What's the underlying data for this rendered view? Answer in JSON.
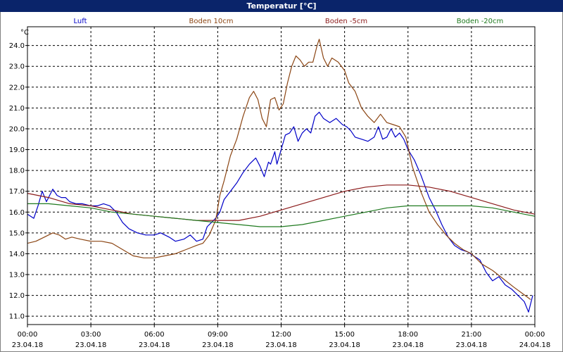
{
  "window": {
    "title": "Temperatur [°C]"
  },
  "chart_data": {
    "type": "line",
    "ylabel": "°C",
    "ylim": [
      10.6,
      24.9
    ],
    "xlim": [
      0,
      24
    ],
    "grid": true,
    "legend_placement": "top",
    "y_ticks": [
      "11.0",
      "12.0",
      "13.0",
      "14.0",
      "15.0",
      "16.0",
      "17.0",
      "18.0",
      "19.0",
      "20.0",
      "21.0",
      "22.0",
      "23.0",
      "24.0"
    ],
    "x_ticks": [
      {
        "t": 0,
        "time": "00:00",
        "date": "23.04.18"
      },
      {
        "t": 3,
        "time": "03:00",
        "date": "23.04.18"
      },
      {
        "t": 6,
        "time": "06:00",
        "date": "23.04.18"
      },
      {
        "t": 9,
        "time": "09:00",
        "date": "23.04.18"
      },
      {
        "t": 12,
        "time": "12:00",
        "date": "23.04.18"
      },
      {
        "t": 15,
        "time": "15:00",
        "date": "23.04.18"
      },
      {
        "t": 18,
        "time": "18:00",
        "date": "23.04.18"
      },
      {
        "t": 21,
        "time": "21:00",
        "date": "23.04.18"
      },
      {
        "t": 24,
        "time": "00:00",
        "date": "24.04.18"
      }
    ],
    "series": [
      {
        "name": "Luft",
        "color": "#0000c8",
        "x": [
          0,
          0.3,
          0.5,
          0.7,
          0.9,
          1.1,
          1.2,
          1.4,
          1.6,
          1.8,
          2.0,
          2.3,
          2.6,
          3.0,
          3.3,
          3.6,
          3.9,
          4.2,
          4.5,
          4.8,
          5.2,
          5.6,
          6.0,
          6.3,
          6.7,
          7.0,
          7.4,
          7.7,
          8.0,
          8.3,
          8.5,
          8.7,
          8.9,
          9.1,
          9.3,
          9.6,
          9.9,
          10.2,
          10.5,
          10.8,
          11.0,
          11.2,
          11.4,
          11.5,
          11.7,
          11.8,
          12.0,
          12.2,
          12.4,
          12.6,
          12.8,
          13.0,
          13.2,
          13.4,
          13.6,
          13.8,
          14.0,
          14.3,
          14.6,
          14.9,
          15.1,
          15.3,
          15.5,
          15.8,
          16.1,
          16.4,
          16.6,
          16.8,
          17.0,
          17.2,
          17.4,
          17.6,
          17.8,
          18.0,
          18.3,
          18.6,
          19.0,
          19.3,
          19.6,
          19.9,
          20.2,
          20.5,
          20.8,
          21.1,
          21.4,
          21.7,
          22.0,
          22.3,
          22.6,
          22.9,
          23.2,
          23.5,
          23.7,
          23.9
        ],
        "y": [
          15.9,
          15.7,
          16.3,
          17.0,
          16.5,
          16.9,
          17.1,
          16.8,
          16.7,
          16.7,
          16.5,
          16.4,
          16.4,
          16.3,
          16.3,
          16.4,
          16.3,
          16.0,
          15.5,
          15.2,
          15.0,
          14.9,
          14.9,
          15.0,
          14.8,
          14.6,
          14.7,
          14.9,
          14.6,
          14.7,
          15.3,
          15.5,
          15.7,
          16.0,
          16.6,
          17.0,
          17.4,
          17.9,
          18.3,
          18.6,
          18.2,
          17.7,
          18.4,
          18.3,
          18.9,
          18.3,
          19.0,
          19.7,
          19.8,
          20.1,
          19.4,
          19.8,
          20.0,
          19.8,
          20.6,
          20.8,
          20.5,
          20.3,
          20.5,
          20.2,
          20.1,
          19.9,
          19.6,
          19.5,
          19.4,
          19.6,
          20.1,
          19.5,
          19.6,
          20.0,
          19.6,
          19.8,
          19.5,
          19.0,
          18.5,
          17.8,
          16.7,
          16.1,
          15.4,
          14.8,
          14.4,
          14.2,
          14.1,
          13.9,
          13.7,
          13.1,
          12.7,
          12.9,
          12.5,
          12.3,
          12.0,
          11.7,
          11.2,
          12.0
        ]
      },
      {
        "name": "Boden 10cm",
        "color": "#8b4513",
        "x": [
          0,
          0.4,
          0.8,
          1.2,
          1.5,
          1.8,
          2.1,
          2.5,
          3.0,
          3.5,
          4.0,
          4.5,
          5.0,
          5.5,
          6.0,
          6.5,
          7.0,
          7.5,
          8.0,
          8.3,
          8.6,
          8.9,
          9.1,
          9.3,
          9.6,
          9.9,
          10.2,
          10.5,
          10.7,
          10.9,
          11.1,
          11.3,
          11.5,
          11.7,
          11.9,
          12.1,
          12.3,
          12.5,
          12.7,
          12.9,
          13.1,
          13.3,
          13.5,
          13.7,
          13.8,
          14.0,
          14.2,
          14.4,
          14.7,
          15.0,
          15.2,
          15.5,
          15.8,
          16.1,
          16.4,
          16.7,
          17.0,
          17.3,
          17.6,
          17.9,
          18.2,
          18.6,
          19.0,
          19.4,
          19.8,
          20.2,
          20.6,
          21.0,
          21.5,
          22.0,
          22.5,
          23.0,
          23.4,
          23.8
        ],
        "y": [
          14.5,
          14.6,
          14.8,
          15.0,
          14.9,
          14.7,
          14.8,
          14.7,
          14.6,
          14.6,
          14.5,
          14.2,
          13.9,
          13.8,
          13.8,
          13.9,
          14.0,
          14.2,
          14.4,
          14.5,
          14.9,
          15.6,
          16.8,
          17.5,
          18.7,
          19.5,
          20.6,
          21.5,
          21.8,
          21.4,
          20.5,
          20.1,
          21.4,
          21.5,
          20.9,
          21.2,
          22.2,
          23.0,
          23.5,
          23.3,
          23.0,
          23.2,
          23.2,
          24.0,
          24.3,
          23.4,
          23.0,
          23.4,
          23.2,
          22.8,
          22.2,
          21.8,
          21.0,
          20.6,
          20.3,
          20.7,
          20.3,
          20.2,
          20.1,
          19.6,
          18.2,
          17.0,
          16.0,
          15.4,
          14.9,
          14.5,
          14.2,
          14.0,
          13.5,
          13.2,
          12.8,
          12.4,
          12.1,
          11.8
        ]
      },
      {
        "name": "Boden -5cm",
        "color": "#8b1a1a",
        "x": [
          0,
          1,
          2,
          3,
          4,
          5,
          6,
          7,
          8,
          9,
          10,
          11,
          12,
          13,
          14,
          15,
          16,
          17,
          18,
          19,
          20,
          21,
          22,
          23,
          24
        ],
        "y": [
          16.9,
          16.7,
          16.4,
          16.3,
          16.1,
          15.9,
          15.8,
          15.7,
          15.6,
          15.6,
          15.6,
          15.8,
          16.1,
          16.4,
          16.7,
          17.0,
          17.2,
          17.3,
          17.3,
          17.2,
          17.0,
          16.7,
          16.4,
          16.1,
          15.9
        ]
      },
      {
        "name": "Boden -20cm",
        "color": "#1f7a1f",
        "x": [
          0,
          1,
          2,
          3,
          4,
          5,
          6,
          7,
          8,
          9,
          10,
          11,
          12,
          13,
          14,
          15,
          16,
          17,
          18,
          19,
          20,
          21,
          22,
          23,
          24
        ],
        "y": [
          16.4,
          16.4,
          16.3,
          16.2,
          16.0,
          15.9,
          15.8,
          15.7,
          15.6,
          15.5,
          15.4,
          15.3,
          15.3,
          15.4,
          15.6,
          15.8,
          16.0,
          16.2,
          16.3,
          16.3,
          16.3,
          16.3,
          16.2,
          16.0,
          15.8
        ]
      }
    ]
  }
}
